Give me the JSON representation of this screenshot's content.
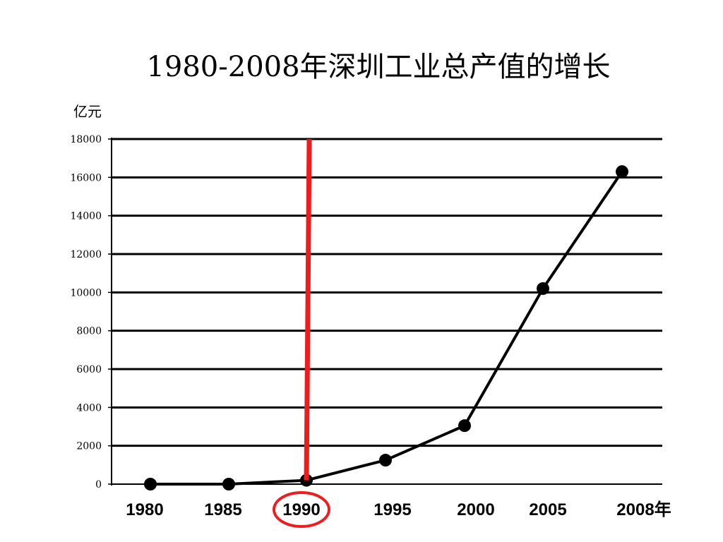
{
  "title": "1980-2008年深圳工业总产值的增长",
  "y_unit": "亿元",
  "colors": {
    "line": "#000000",
    "grid": "#000000",
    "highlight": "#ee1c1c"
  },
  "chart_data": {
    "type": "line",
    "title": "1980-2008年深圳工业总产值的增长",
    "xlabel": "",
    "ylabel": "亿元",
    "x": [
      1980,
      1985,
      1990,
      1995,
      2000,
      2005,
      2008
    ],
    "x_tick_labels": [
      "1980",
      "1985",
      "1990",
      "1995",
      "2000",
      "2005",
      "2008年"
    ],
    "series": [
      {
        "values": [
          0,
          0,
          200,
          1250,
          3050,
          10200,
          16300
        ]
      }
    ],
    "y_ticks": [
      0,
      2000,
      4000,
      6000,
      8000,
      10000,
      12000,
      14000,
      16000,
      18000
    ],
    "ylim": [
      0,
      18000
    ],
    "grid": true,
    "legend": "none",
    "annotations": [
      {
        "type": "vertical-line",
        "x": 1990,
        "color": "#ee1c1c"
      },
      {
        "type": "circle",
        "target": "x-tick",
        "label": "1990",
        "color": "#ee1c1c"
      }
    ]
  }
}
